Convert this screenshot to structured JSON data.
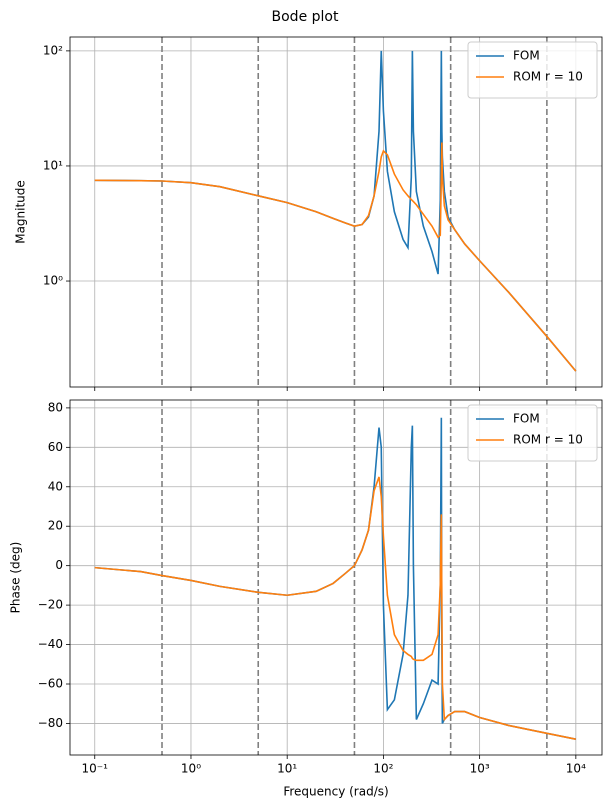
{
  "chart_data": [
    {
      "type": "line",
      "title": "Bode plot",
      "y_label": "Magnitude",
      "xscale": "log",
      "yscale": "log",
      "grid": true,
      "legend": "upper right",
      "xlim": [
        0.0553,
        18700
      ],
      "xticks": [
        0.1,
        1,
        10,
        100,
        1000,
        10000
      ],
      "ylim": [
        0.12,
        132
      ],
      "yticks": [
        {
          "value": 1,
          "label": "10⁰"
        },
        {
          "value": 10,
          "label": "10¹"
        },
        {
          "value": 100,
          "label": "10²"
        }
      ],
      "vlines": [
        0.5,
        5,
        50,
        500,
        5000
      ],
      "vline_color": "#808080",
      "x": [
        0.1,
        0.3,
        0.5,
        1,
        2,
        5,
        10,
        20,
        30,
        40,
        50,
        60,
        70,
        80,
        90,
        95,
        100,
        110,
        130,
        160,
        180,
        195,
        200,
        205,
        220,
        260,
        320,
        370,
        390,
        400,
        405,
        410,
        430,
        470,
        550,
        700,
        1000,
        2000,
        5000,
        10000
      ],
      "series": [
        {
          "name": "FOM",
          "color": "#1f77b4",
          "values": [
            7.5,
            7.45,
            7.4,
            7.15,
            6.6,
            5.5,
            4.8,
            4.0,
            3.5,
            3.2,
            3.0,
            3.1,
            3.6,
            5.5,
            20,
            100,
            30,
            9,
            4,
            2.3,
            1.95,
            8,
            100,
            20,
            6,
            3,
            1.8,
            1.15,
            5,
            100,
            20,
            12,
            6,
            3.6,
            2.8,
            2.1,
            1.5,
            0.8,
            0.33,
            0.165
          ]
        },
        {
          "name": "ROM r = 10",
          "color": "#ff7f0e",
          "values": [
            7.5,
            7.45,
            7.4,
            7.15,
            6.6,
            5.5,
            4.8,
            4.0,
            3.5,
            3.2,
            3.0,
            3.1,
            3.7,
            5.5,
            9,
            12,
            13.5,
            12.5,
            8.5,
            6.2,
            5.5,
            5.1,
            5,
            4.9,
            4.6,
            3.8,
            3.0,
            2.4,
            2.5,
            8,
            16,
            8,
            4.5,
            3.4,
            2.8,
            2.1,
            1.5,
            0.8,
            0.33,
            0.165
          ]
        }
      ]
    },
    {
      "type": "line",
      "x_label": "Frequency (rad/s)",
      "y_label": "Phase (deg)",
      "xscale": "log",
      "yscale": "linear",
      "grid": true,
      "legend": "upper right",
      "xlim": [
        0.0553,
        18700
      ],
      "xticks": [
        {
          "value": 0.1,
          "label": "10⁻¹"
        },
        {
          "value": 1,
          "label": "10⁰"
        },
        {
          "value": 10,
          "label": "10¹"
        },
        {
          "value": 100,
          "label": "10²"
        },
        {
          "value": 1000,
          "label": "10³"
        },
        {
          "value": 10000,
          "label": "10⁴"
        }
      ],
      "ylim": [
        -96,
        84
      ],
      "yticks": [
        {
          "value": -80,
          "label": "−80"
        },
        {
          "value": -60,
          "label": "−60"
        },
        {
          "value": -40,
          "label": "−40"
        },
        {
          "value": -20,
          "label": "−20"
        },
        0,
        20,
        40,
        60,
        80
      ],
      "vlines": [
        0.5,
        5,
        50,
        500,
        5000
      ],
      "vline_color": "#808080",
      "x": [
        0.1,
        0.3,
        0.5,
        1,
        2,
        5,
        10,
        20,
        30,
        40,
        50,
        60,
        70,
        80,
        90,
        95,
        100,
        110,
        130,
        160,
        180,
        195,
        200,
        205,
        220,
        260,
        320,
        370,
        390,
        400,
        405,
        410,
        430,
        470,
        550,
        700,
        1000,
        2000,
        5000,
        10000
      ],
      "series": [
        {
          "name": "FOM",
          "color": "#1f77b4",
          "values": [
            -1,
            -3,
            -5,
            -7.5,
            -10.5,
            -13.5,
            -15,
            -13,
            -9,
            -4,
            0,
            8,
            18,
            40,
            70,
            60,
            -20,
            -73,
            -68,
            -45,
            -15,
            60,
            71,
            0,
            -78,
            -70,
            -58,
            -60,
            -10,
            75,
            -40,
            -80,
            -78,
            -76,
            -74,
            -74,
            -77,
            -81,
            -85,
            -88
          ]
        },
        {
          "name": "ROM r = 10",
          "color": "#ff7f0e",
          "values": [
            -1,
            -3,
            -5,
            -7.5,
            -10.5,
            -13.5,
            -15,
            -13,
            -9,
            -4,
            0,
            8,
            18,
            38,
            45,
            35,
            15,
            -15,
            -35,
            -43,
            -45,
            -46,
            -47,
            -47.5,
            -48,
            -48,
            -45,
            -35,
            -10,
            26,
            -20,
            -60,
            -78,
            -76,
            -74,
            -74,
            -77,
            -81,
            -85,
            -88
          ]
        }
      ]
    }
  ]
}
